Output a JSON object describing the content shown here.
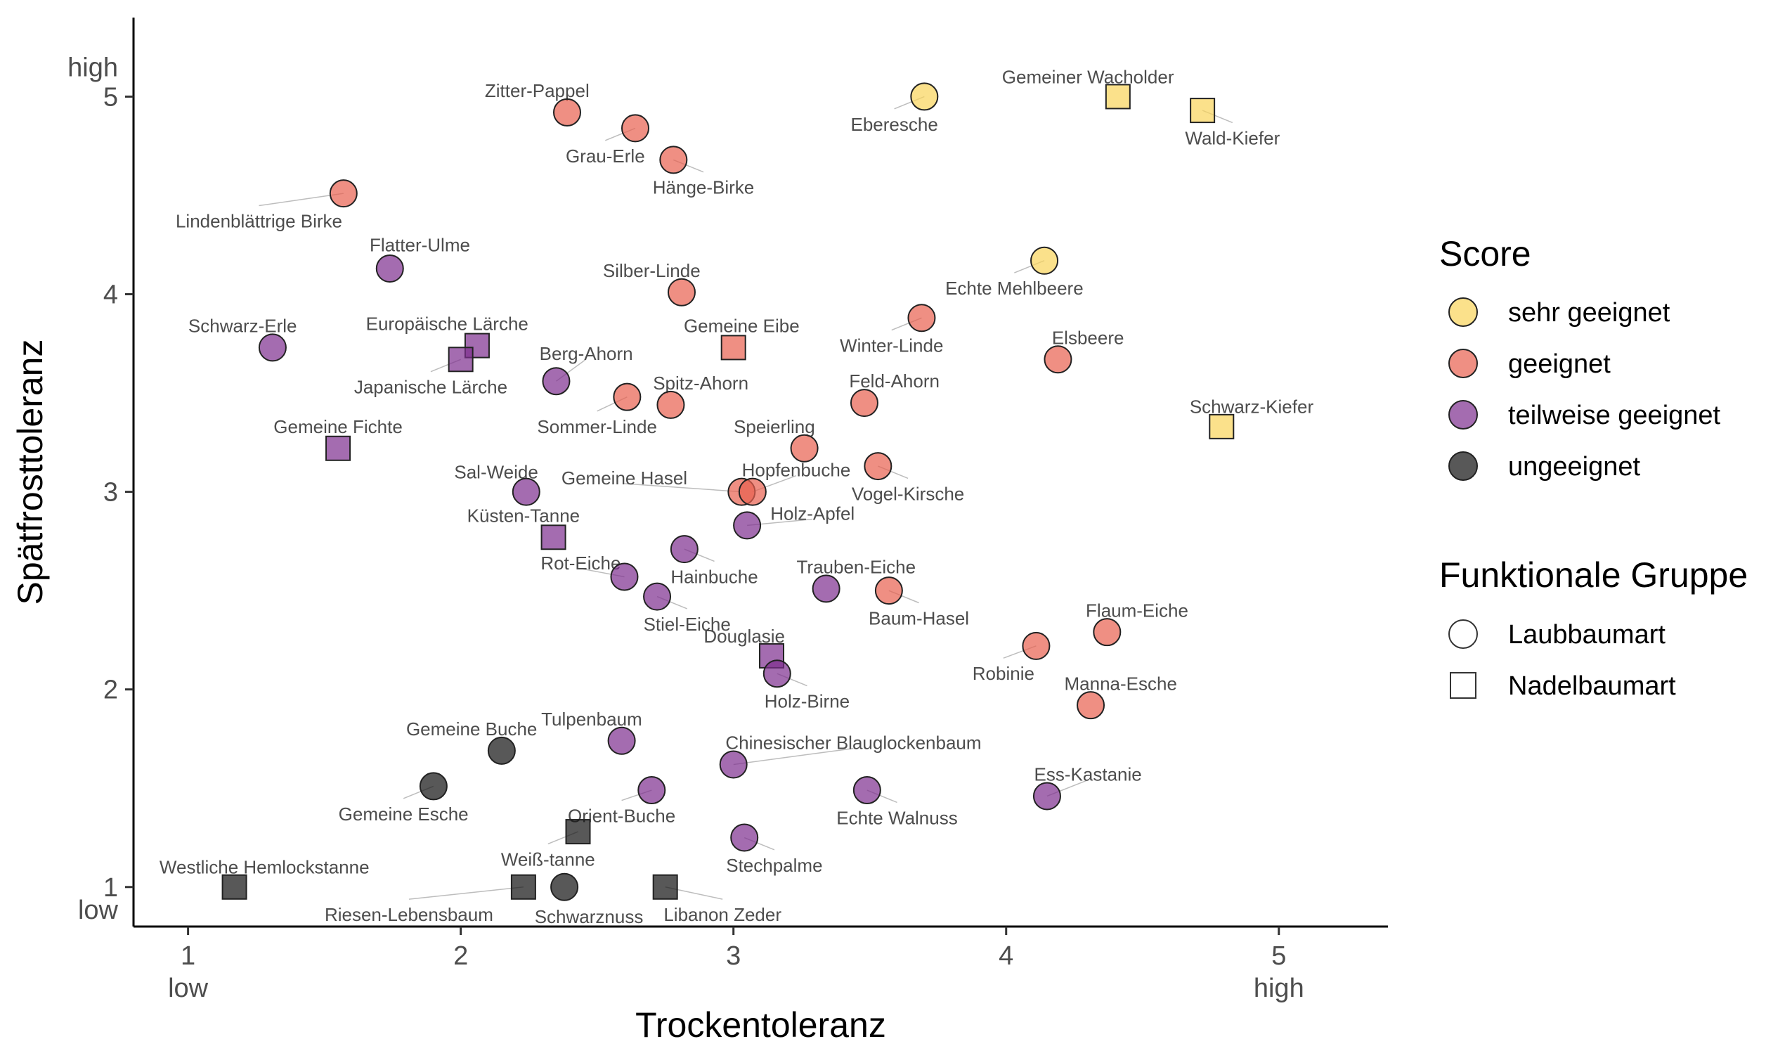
{
  "chart_data": {
    "type": "scatter",
    "xlabel": "Trockentoleranz",
    "ylabel": "Spätfrosttoleranz",
    "xlim": [
      0.8,
      5.4
    ],
    "ylim": [
      0.8,
      5.4
    ],
    "x_ticks": [
      {
        "value": 1,
        "label": "1",
        "sublabel": "low"
      },
      {
        "value": 2,
        "label": "2",
        "sublabel": ""
      },
      {
        "value": 3,
        "label": "3",
        "sublabel": ""
      },
      {
        "value": 4,
        "label": "4",
        "sublabel": ""
      },
      {
        "value": 5,
        "label": "5",
        "sublabel": "high"
      }
    ],
    "y_ticks": [
      {
        "value": 1,
        "label": "1",
        "sublabel": "low"
      },
      {
        "value": 2,
        "label": "2",
        "sublabel": ""
      },
      {
        "value": 3,
        "label": "3",
        "sublabel": ""
      },
      {
        "value": 4,
        "label": "4",
        "sublabel": ""
      },
      {
        "value": 5,
        "label": "5",
        "sublabel": "high"
      }
    ],
    "grid": false,
    "legend_position": "right",
    "score_legend": {
      "title": "Score",
      "items": [
        {
          "key": "sehr",
          "label": "sehr geeignet",
          "color": "#F9D45A"
        },
        {
          "key": "geeignet",
          "label": "geeignet",
          "color": "#E8604F"
        },
        {
          "key": "teilweise",
          "label": "teilweise geeignet",
          "color": "#7D2E8F"
        },
        {
          "key": "ungeeignet",
          "label": "ungeeignet",
          "color": "#111111"
        }
      ]
    },
    "group_legend": {
      "title": "Funktionale Gruppe",
      "items": [
        {
          "key": "laub",
          "label": "Laubbaumart",
          "shape": "circle"
        },
        {
          "key": "nadel",
          "label": "Nadelbaumart",
          "shape": "square"
        }
      ]
    },
    "points": [
      {
        "name": "Gemeiner Wacholder",
        "x": 4.41,
        "y": 5.0,
        "score": "sehr",
        "group": "nadel",
        "anchor": "middle",
        "lx": 4.3,
        "ly": 5.1
      },
      {
        "name": "Wald-Kiefer",
        "x": 4.72,
        "y": 4.93,
        "score": "sehr",
        "group": "nadel",
        "anchor": "middle",
        "lx": 4.83,
        "ly": 4.79
      },
      {
        "name": "Eberesche",
        "x": 3.7,
        "y": 5.0,
        "score": "sehr",
        "group": "laub",
        "anchor": "middle",
        "lx": 3.59,
        "ly": 4.86
      },
      {
        "name": "Echte Mehlbeere",
        "x": 4.14,
        "y": 4.17,
        "score": "sehr",
        "group": "laub",
        "anchor": "middle",
        "lx": 4.03,
        "ly": 4.03
      },
      {
        "name": "Schwarz-Kiefer",
        "x": 4.79,
        "y": 3.33,
        "score": "sehr",
        "group": "nadel",
        "anchor": "middle",
        "lx": 4.9,
        "ly": 3.43
      },
      {
        "name": "Zitter-Pappel",
        "x": 2.39,
        "y": 4.92,
        "score": "geeignet",
        "group": "laub",
        "anchor": "middle",
        "lx": 2.28,
        "ly": 5.03
      },
      {
        "name": "Grau-Erle",
        "x": 2.64,
        "y": 4.84,
        "score": "geeignet",
        "group": "laub",
        "anchor": "middle",
        "lx": 2.53,
        "ly": 4.7
      },
      {
        "name": "Hänge-Birke",
        "x": 2.78,
        "y": 4.68,
        "score": "geeignet",
        "group": "laub",
        "anchor": "middle",
        "lx": 2.89,
        "ly": 4.54
      },
      {
        "name": "Lindenblättrige Birke",
        "x": 1.57,
        "y": 4.51,
        "score": "geeignet",
        "group": "laub",
        "anchor": "middle",
        "lx": 1.26,
        "ly": 4.37
      },
      {
        "name": "Silber-Linde",
        "x": 2.81,
        "y": 4.01,
        "score": "geeignet",
        "group": "laub",
        "anchor": "middle",
        "lx": 2.7,
        "ly": 4.12
      },
      {
        "name": "Gemeine Eibe",
        "x": 3.0,
        "y": 3.73,
        "score": "geeignet",
        "group": "nadel",
        "anchor": "middle",
        "lx": 3.03,
        "ly": 3.84
      },
      {
        "name": "Winter-Linde",
        "x": 3.69,
        "y": 3.88,
        "score": "geeignet",
        "group": "laub",
        "anchor": "middle",
        "lx": 3.58,
        "ly": 3.74
      },
      {
        "name": "Elsbeere",
        "x": 4.19,
        "y": 3.67,
        "score": "geeignet",
        "group": "laub",
        "anchor": "middle",
        "lx": 4.3,
        "ly": 3.78
      },
      {
        "name": "Spitz-Ahorn",
        "x": 2.77,
        "y": 3.44,
        "score": "geeignet",
        "group": "laub",
        "anchor": "middle",
        "lx": 2.88,
        "ly": 3.55
      },
      {
        "name": "Sommer-Linde",
        "x": 2.61,
        "y": 3.48,
        "score": "geeignet",
        "group": "laub",
        "anchor": "middle",
        "lx": 2.5,
        "ly": 3.33
      },
      {
        "name": "Feld-Ahorn",
        "x": 3.48,
        "y": 3.45,
        "score": "geeignet",
        "group": "laub",
        "anchor": "middle",
        "lx": 3.59,
        "ly": 3.56
      },
      {
        "name": "Speierling",
        "x": 3.26,
        "y": 3.22,
        "score": "geeignet",
        "group": "laub",
        "anchor": "middle",
        "lx": 3.15,
        "ly": 3.33
      },
      {
        "name": "Vogel-Kirsche",
        "x": 3.53,
        "y": 3.13,
        "score": "geeignet",
        "group": "laub",
        "anchor": "middle",
        "lx": 3.64,
        "ly": 2.99
      },
      {
        "name": "Gemeine Hasel",
        "x": 3.03,
        "y": 3.0,
        "score": "geeignet",
        "group": "laub",
        "anchor": "middle",
        "lx": 2.6,
        "ly": 3.07
      },
      {
        "name": "Hopfenbuche",
        "x": 3.07,
        "y": 3.0,
        "score": "geeignet",
        "group": "laub",
        "anchor": "middle",
        "lx": 3.23,
        "ly": 3.11
      },
      {
        "name": "Baum-Hasel",
        "x": 3.57,
        "y": 2.5,
        "score": "geeignet",
        "group": "laub",
        "anchor": "middle",
        "lx": 3.68,
        "ly": 2.36
      },
      {
        "name": "Flaum-Eiche",
        "x": 4.37,
        "y": 2.29,
        "score": "geeignet",
        "group": "laub",
        "anchor": "middle",
        "lx": 4.48,
        "ly": 2.4
      },
      {
        "name": "Robinie",
        "x": 4.11,
        "y": 2.22,
        "score": "geeignet",
        "group": "laub",
        "anchor": "middle",
        "lx": 3.99,
        "ly": 2.08
      },
      {
        "name": "Manna-Esche",
        "x": 4.31,
        "y": 1.92,
        "score": "geeignet",
        "group": "laub",
        "anchor": "middle",
        "lx": 4.42,
        "ly": 2.03
      },
      {
        "name": "Flatter-Ulme",
        "x": 1.74,
        "y": 4.13,
        "score": "teilweise",
        "group": "laub",
        "anchor": "middle",
        "lx": 1.85,
        "ly": 4.25
      },
      {
        "name": "Schwarz-Erle",
        "x": 1.31,
        "y": 3.73,
        "score": "teilweise",
        "group": "laub",
        "anchor": "middle",
        "lx": 1.2,
        "ly": 3.84
      },
      {
        "name": "Europäische Lärche",
        "x": 2.06,
        "y": 3.74,
        "score": "teilweise",
        "group": "nadel",
        "anchor": "middle",
        "lx": 1.95,
        "ly": 3.85
      },
      {
        "name": "Japanische Lärche",
        "x": 2.0,
        "y": 3.67,
        "score": "teilweise",
        "group": "nadel",
        "anchor": "middle",
        "lx": 1.89,
        "ly": 3.53
      },
      {
        "name": "Berg-Ahorn",
        "x": 2.35,
        "y": 3.56,
        "score": "teilweise",
        "group": "laub",
        "anchor": "middle",
        "lx": 2.46,
        "ly": 3.7
      },
      {
        "name": "Gemeine Fichte",
        "x": 1.55,
        "y": 3.22,
        "score": "teilweise",
        "group": "nadel",
        "anchor": "middle",
        "lx": 1.55,
        "ly": 3.33
      },
      {
        "name": "Sal-Weide",
        "x": 2.24,
        "y": 3.0,
        "score": "teilweise",
        "group": "laub",
        "anchor": "middle",
        "lx": 2.13,
        "ly": 3.1
      },
      {
        "name": "Küsten-Tanne",
        "x": 2.34,
        "y": 2.77,
        "score": "teilweise",
        "group": "nadel",
        "anchor": "middle",
        "lx": 2.23,
        "ly": 2.88
      },
      {
        "name": "Holz-Apfel",
        "x": 3.05,
        "y": 2.83,
        "score": "teilweise",
        "group": "laub",
        "anchor": "middle",
        "lx": 3.29,
        "ly": 2.89
      },
      {
        "name": "Rot-Eiche",
        "x": 2.6,
        "y": 2.57,
        "score": "teilweise",
        "group": "laub",
        "anchor": "middle",
        "lx": 2.44,
        "ly": 2.64
      },
      {
        "name": "Hainbuche",
        "x": 2.82,
        "y": 2.71,
        "score": "teilweise",
        "group": "laub",
        "anchor": "middle",
        "lx": 2.93,
        "ly": 2.57
      },
      {
        "name": "Stiel-Eiche",
        "x": 2.72,
        "y": 2.47,
        "score": "teilweise",
        "group": "laub",
        "anchor": "middle",
        "lx": 2.83,
        "ly": 2.33
      },
      {
        "name": "Trauben-Eiche",
        "x": 3.34,
        "y": 2.51,
        "score": "teilweise",
        "group": "laub",
        "anchor": "middle",
        "lx": 3.45,
        "ly": 2.62
      },
      {
        "name": "Douglasie",
        "x": 3.14,
        "y": 2.17,
        "score": "teilweise",
        "group": "nadel",
        "anchor": "middle",
        "lx": 3.04,
        "ly": 2.27
      },
      {
        "name": "Holz-Birne",
        "x": 3.16,
        "y": 2.08,
        "score": "teilweise",
        "group": "laub",
        "anchor": "middle",
        "lx": 3.27,
        "ly": 1.94
      },
      {
        "name": "Tulpenbaum",
        "x": 2.59,
        "y": 1.74,
        "score": "teilweise",
        "group": "laub",
        "anchor": "middle",
        "lx": 2.48,
        "ly": 1.85
      },
      {
        "name": "Chinesischer Blauglockenbaum",
        "x": 3.0,
        "y": 1.62,
        "score": "teilweise",
        "group": "laub",
        "anchor": "middle",
        "lx": 3.44,
        "ly": 1.73
      },
      {
        "name": "Echte Walnuss",
        "x": 3.49,
        "y": 1.49,
        "score": "teilweise",
        "group": "laub",
        "anchor": "middle",
        "lx": 3.6,
        "ly": 1.35
      },
      {
        "name": "Ess-Kastanie",
        "x": 4.15,
        "y": 1.46,
        "score": "teilweise",
        "group": "laub",
        "anchor": "middle",
        "lx": 4.3,
        "ly": 1.57
      },
      {
        "name": "Orient-Buche",
        "x": 2.7,
        "y": 1.49,
        "score": "teilweise",
        "group": "laub",
        "anchor": "middle",
        "lx": 2.59,
        "ly": 1.36
      },
      {
        "name": "Stechpalme",
        "x": 3.04,
        "y": 1.25,
        "score": "teilweise",
        "group": "laub",
        "anchor": "middle",
        "lx": 3.15,
        "ly": 1.11
      },
      {
        "name": "Gemeine Buche",
        "x": 2.15,
        "y": 1.69,
        "score": "ungeeignet",
        "group": "laub",
        "anchor": "middle",
        "lx": 2.04,
        "ly": 1.8
      },
      {
        "name": "Gemeine Esche",
        "x": 1.9,
        "y": 1.51,
        "score": "ungeeignet",
        "group": "laub",
        "anchor": "middle",
        "lx": 1.79,
        "ly": 1.37
      },
      {
        "name": "Weiß-tanne",
        "x": 2.43,
        "y": 1.28,
        "score": "ungeeignet",
        "group": "nadel",
        "anchor": "middle",
        "lx": 2.32,
        "ly": 1.14
      },
      {
        "name": "Westliche Hemlockstanne",
        "x": 1.17,
        "y": 1.0,
        "score": "ungeeignet",
        "group": "nadel",
        "anchor": "middle",
        "lx": 1.28,
        "ly": 1.1
      },
      {
        "name": "Riesen-Lebensbaum",
        "x": 2.23,
        "y": 1.0,
        "score": "ungeeignet",
        "group": "nadel",
        "anchor": "middle",
        "lx": 1.81,
        "ly": 0.86
      },
      {
        "name": "Schwarznuss",
        "x": 2.38,
        "y": 1.0,
        "score": "ungeeignet",
        "group": "laub",
        "anchor": "middle",
        "lx": 2.47,
        "ly": 0.85
      },
      {
        "name": "Libanon Zeder",
        "x": 2.75,
        "y": 1.0,
        "score": "ungeeignet",
        "group": "nadel",
        "anchor": "middle",
        "lx": 2.96,
        "ly": 0.86
      }
    ]
  }
}
